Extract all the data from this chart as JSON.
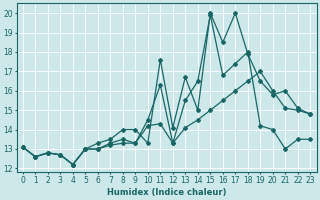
{
  "xlabel": "Humidex (Indice chaleur)",
  "bg_color": "#cce8e8",
  "grid_color": "#ffffff",
  "line_color": "#1a6666",
  "marker": "D",
  "markersize": 2.0,
  "linewidth": 0.9,
  "xlim": [
    -0.5,
    23.5
  ],
  "ylim": [
    11.8,
    20.5
  ],
  "xticks": [
    0,
    1,
    2,
    3,
    4,
    5,
    6,
    7,
    8,
    9,
    10,
    11,
    12,
    13,
    14,
    15,
    16,
    17,
    18,
    19,
    20,
    21,
    22,
    23
  ],
  "yticks": [
    12,
    13,
    14,
    15,
    16,
    17,
    18,
    19,
    20
  ],
  "line1_y": [
    13.1,
    12.6,
    12.8,
    12.7,
    12.2,
    13.0,
    13.3,
    13.5,
    14.0,
    14.0,
    13.3,
    17.6,
    14.1,
    16.7,
    15.0,
    20.0,
    18.5,
    20.0,
    17.9,
    16.5,
    15.8,
    16.0,
    15.1,
    14.8
  ],
  "line2_y": [
    13.1,
    12.6,
    12.8,
    12.7,
    12.2,
    13.0,
    13.0,
    13.3,
    13.5,
    13.3,
    14.5,
    16.3,
    13.3,
    15.5,
    16.5,
    19.9,
    16.8,
    17.4,
    18.0,
    14.2,
    14.0,
    13.0,
    13.5,
    13.5
  ],
  "line3_y": [
    13.1,
    12.6,
    12.8,
    12.7,
    12.2,
    13.0,
    13.0,
    13.2,
    13.3,
    13.3,
    14.2,
    14.3,
    13.3,
    14.1,
    14.5,
    15.0,
    15.5,
    16.0,
    16.5,
    17.0,
    16.0,
    15.1,
    15.0,
    14.8
  ],
  "tick_fontsize": 5.5,
  "xlabel_fontsize": 6.0
}
